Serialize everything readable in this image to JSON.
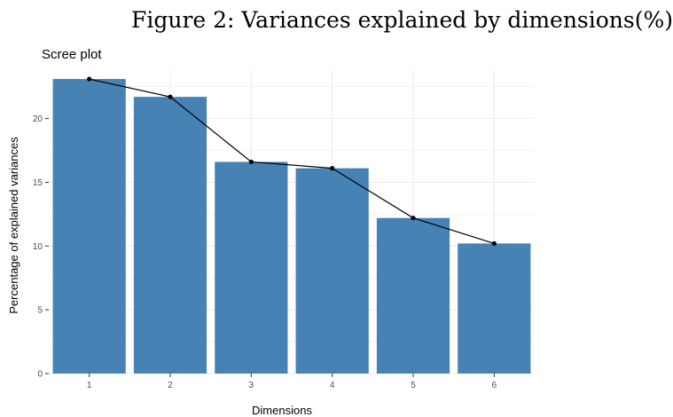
{
  "figure_caption": "Figure 2: Variances explained by dimensions(%)",
  "chart_data": {
    "type": "bar",
    "title": "Scree plot",
    "xlabel": "Dimensions",
    "ylabel": "Percentage of explained variances",
    "categories": [
      "1",
      "2",
      "3",
      "4",
      "5",
      "6"
    ],
    "values": [
      23.1,
      21.7,
      16.6,
      16.1,
      12.2,
      10.2
    ],
    "ylim": [
      0,
      23.8
    ],
    "yticks": [
      0,
      5,
      10,
      15,
      20
    ],
    "grid": true,
    "legend": "none",
    "overlay": "line with points connecting bar tops",
    "colors": {
      "bar": "#4682b4",
      "line": "#000000",
      "grid": "#ebebeb",
      "tick_label": "#4d4d4d"
    }
  }
}
